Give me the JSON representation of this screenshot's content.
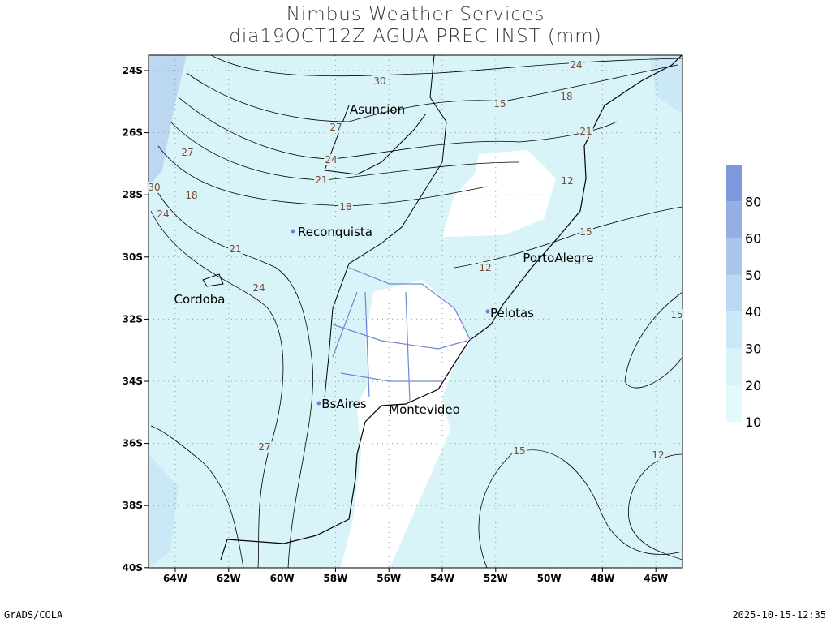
{
  "header": {
    "title": "Nimbus Weather Services",
    "subtitle": "dia19OCT12Z AGUA PREC INST (mm)"
  },
  "map": {
    "lat_labels": [
      "24S",
      "26S",
      "28S",
      "30S",
      "32S",
      "34S",
      "36S",
      "38S",
      "40S"
    ],
    "lon_labels": [
      "64W",
      "62W",
      "60W",
      "58W",
      "56W",
      "54W",
      "52W",
      "50W",
      "48W",
      "46W"
    ],
    "cities": [
      "Asuncion",
      "Reconquista",
      "Cordoba",
      "PortoAlegre",
      "Pelotas",
      "BsAires",
      "Montevideo"
    ],
    "contour_labels": [
      30,
      27,
      24,
      21,
      27,
      30,
      24,
      18,
      18,
      21,
      24,
      15,
      18,
      24,
      21,
      12,
      15,
      12,
      15,
      27,
      15,
      12
    ]
  },
  "colorbar": {
    "labels": [
      80,
      60,
      50,
      40,
      30,
      20,
      10
    ],
    "colors": [
      "#7f97dc",
      "#96aee3",
      "#aac4eb",
      "#bcd7f1",
      "#cbe8f6",
      "#d8f4f8",
      "#e2fafc"
    ]
  },
  "footer": {
    "left": "GrADS/COLA",
    "right": "2025-10-15-12:35"
  }
}
